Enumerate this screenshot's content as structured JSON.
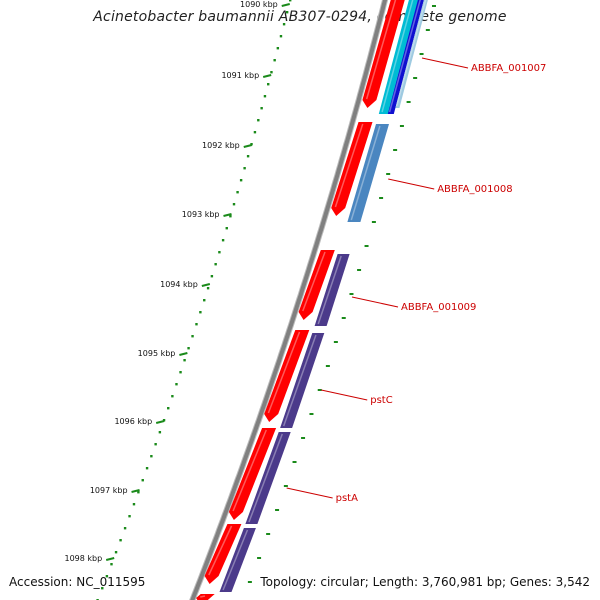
{
  "title": "Acinetobacter baumannii AB307-0294, complete genome",
  "accession": "Accession: NC_011595",
  "topology": "Topology: circular; Length: 3,760,981 bp; Genes: 3,542",
  "ticks": [
    {
      "label": "1090 kbp"
    },
    {
      "label": "1091 kbp"
    },
    {
      "label": "1092 kbp"
    },
    {
      "label": "1093 kbp"
    },
    {
      "label": "1094 kbp"
    },
    {
      "label": "1095 kbp"
    },
    {
      "label": "1096 kbp"
    },
    {
      "label": "1097 kbp"
    },
    {
      "label": "1098 kbp"
    }
  ],
  "gene_labels": [
    {
      "name": "ABBFA_001007"
    },
    {
      "name": "ABBFA_001008"
    },
    {
      "name": "ABBFA_001009"
    },
    {
      "name": "pstC"
    },
    {
      "name": "pstA"
    }
  ],
  "colors": {
    "cds_red": "#ff0000",
    "backbone": "#808080",
    "tick_green": "#1a8a1a",
    "label_red": "#cc0000",
    "purple": "#4b3a8a",
    "steel_blue": "#4a86c0",
    "cyan": "#00bcd4",
    "blue": "#1010d0"
  }
}
